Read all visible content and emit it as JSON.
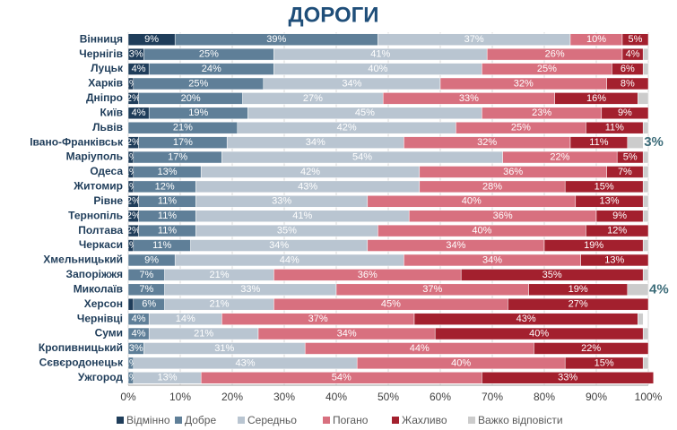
{
  "chart_data": {
    "type": "stacked-barh",
    "title": "ДОРОГИ",
    "categories": [
      "Вінниця",
      "Чернігів",
      "Луцьк",
      "Харків",
      "Дніпро",
      "Київ",
      "Львів",
      "Івано-Франківськ",
      "Маріуполь",
      "Одеса",
      "Житомир",
      "Рівне",
      "Тернопіль",
      "Полтава",
      "Черкаси",
      "Хмельницький",
      "Запоріжжя",
      "Миколаїв",
      "Херсон",
      "Чернівці",
      "Суми",
      "Кропивницький",
      "Сєвєродонецьк",
      "Ужгород"
    ],
    "xlim": [
      0,
      100
    ],
    "xticks": [
      {
        "value": 0,
        "label": "0%"
      },
      {
        "value": 10,
        "label": "10%"
      },
      {
        "value": 20,
        "label": "20%"
      },
      {
        "value": 30,
        "label": "30%"
      },
      {
        "value": 40,
        "label": "40%"
      },
      {
        "value": 50,
        "label": "50%"
      },
      {
        "value": 60,
        "label": "60%"
      },
      {
        "value": 70,
        "label": "70%"
      },
      {
        "value": 80,
        "label": "80%"
      },
      {
        "value": 90,
        "label": "90%"
      },
      {
        "value": 100,
        "label": "100%"
      }
    ],
    "grid": true,
    "legend": "bottom",
    "series": [
      {
        "name": "Відмінно",
        "color": "#1f3d5a",
        "values": [
          9,
          3,
          4,
          1,
          2,
          4,
          0,
          2,
          1,
          1,
          1,
          2,
          2,
          2,
          1,
          0,
          0,
          0,
          1,
          0,
          0,
          0,
          0,
          0
        ],
        "value_labels": [
          "9%",
          "3%",
          "4%",
          "1%",
          "2%",
          "4%",
          null,
          "2%",
          "1%",
          "1%",
          "1%",
          "2%",
          "2%",
          "2%",
          "1%",
          null,
          null,
          null,
          null,
          null,
          null,
          null,
          null,
          null
        ]
      },
      {
        "name": "Добре",
        "color": "#5f7f98",
        "values": [
          39,
          25,
          24,
          25,
          20,
          19,
          21,
          17,
          17,
          13,
          12,
          11,
          11,
          11,
          11,
          9,
          7,
          7,
          6,
          4,
          4,
          3,
          1,
          1
        ],
        "value_labels": [
          "39%",
          "25%",
          "24%",
          "25%",
          "20%",
          "19%",
          "21%",
          "17%",
          "17%",
          "13%",
          "12%",
          "11%",
          "11%",
          "11%",
          "11%",
          "9%",
          "7%",
          "7%",
          "6%",
          "4%",
          "4%",
          "3%",
          "1%",
          "1%"
        ]
      },
      {
        "name": "Середньо",
        "color": "#b9c5d1",
        "values": [
          37,
          41,
          40,
          34,
          27,
          45,
          42,
          34,
          54,
          42,
          43,
          33,
          41,
          35,
          34,
          44,
          21,
          33,
          21,
          14,
          21,
          31,
          43,
          13
        ],
        "value_labels": [
          "37%",
          "41%",
          "40%",
          "34%",
          "27%",
          "45%",
          "42%",
          "34%",
          "54%",
          "42%",
          "43%",
          "33%",
          "41%",
          "35%",
          "34%",
          "44%",
          "21%",
          "33%",
          "21%",
          "14%",
          "21%",
          "31%",
          "43%",
          "13%"
        ]
      },
      {
        "name": "Погано",
        "color": "#d8707f",
        "values": [
          10,
          26,
          25,
          32,
          33,
          23,
          25,
          32,
          22,
          36,
          28,
          40,
          36,
          40,
          34,
          34,
          36,
          37,
          45,
          37,
          34,
          44,
          40,
          54
        ],
        "value_labels": [
          "10%",
          "26%",
          "25%",
          "32%",
          "33%",
          "23%",
          "25%",
          "32%",
          "22%",
          "36%",
          "28%",
          "40%",
          "36%",
          "40%",
          "34%",
          "34%",
          "36%",
          "37%",
          "45%",
          "37%",
          "34%",
          "44%",
          "40%",
          "54%"
        ]
      },
      {
        "name": "Жахливо",
        "color": "#a3202e",
        "values": [
          5,
          4,
          6,
          8,
          16,
          9,
          11,
          11,
          5,
          7,
          15,
          13,
          9,
          12,
          19,
          13,
          35,
          19,
          27,
          43,
          40,
          22,
          15,
          33
        ],
        "value_labels": [
          "5%",
          "4%",
          "6%",
          "8%",
          "16%",
          "9%",
          "11%",
          "11%",
          "5%",
          "7%",
          "15%",
          "13%",
          "9%",
          "12%",
          "19%",
          "13%",
          "35%",
          "19%",
          "27%",
          "43%",
          "40%",
          "22%",
          "15%",
          "33%"
        ]
      },
      {
        "name": "Важко відповісти",
        "color": "#cccccc",
        "values": [
          0,
          1,
          1,
          0,
          2,
          0,
          1,
          3,
          1,
          1,
          1,
          1,
          1,
          0,
          1,
          0,
          1,
          4,
          0,
          1,
          1,
          0,
          1,
          0
        ],
        "value_labels": [
          null,
          null,
          null,
          null,
          null,
          null,
          null,
          "3%",
          null,
          null,
          null,
          null,
          null,
          null,
          null,
          null,
          null,
          "4%",
          null,
          null,
          null,
          null,
          null,
          null
        ]
      }
    ]
  }
}
